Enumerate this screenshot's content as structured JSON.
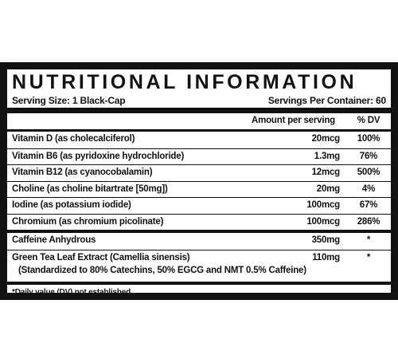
{
  "header": {
    "title": "NUTRITIONAL INFORMATION",
    "serving_size": "Serving Size: 1 Black-Cap",
    "servings_per_container": "Servings Per Container: 60"
  },
  "table": {
    "columns": [
      "Amount per serving",
      "% DV"
    ],
    "sections": [
      [
        {
          "name": "Vitamin D (as cholecalciferol)",
          "amount": "20mcg",
          "dv": "100%"
        },
        {
          "name": "Vitamin B6 (as pyridoxine hydrochloride)",
          "amount": "1.3mg",
          "dv": "76%"
        },
        {
          "name": "Vitamin B12 (as cyanocobalamin)",
          "amount": "12mcg",
          "dv": "500%"
        },
        {
          "name": "Choline (as choline bitartrate [50mg])",
          "amount": "20mg",
          "dv": "4%"
        },
        {
          "name": "Iodine (as potassium iodide)",
          "amount": "100mcg",
          "dv": "67%"
        },
        {
          "name": "Chromium (as chromium picolinate)",
          "amount": "100mcg",
          "dv": "286%"
        }
      ],
      [
        {
          "name": "Caffeine Anhydrous",
          "amount": "350mg",
          "dv": "*"
        },
        {
          "name": "Green Tea Leaf Extract (Camellia sinensis)",
          "note": "(Standardized to 80% Catechins, 50% EGCG and NMT 0.5% Caffeine)",
          "amount": "110mg",
          "dv": "*"
        }
      ]
    ]
  },
  "footnote": "*Daily value (DV) not established"
}
